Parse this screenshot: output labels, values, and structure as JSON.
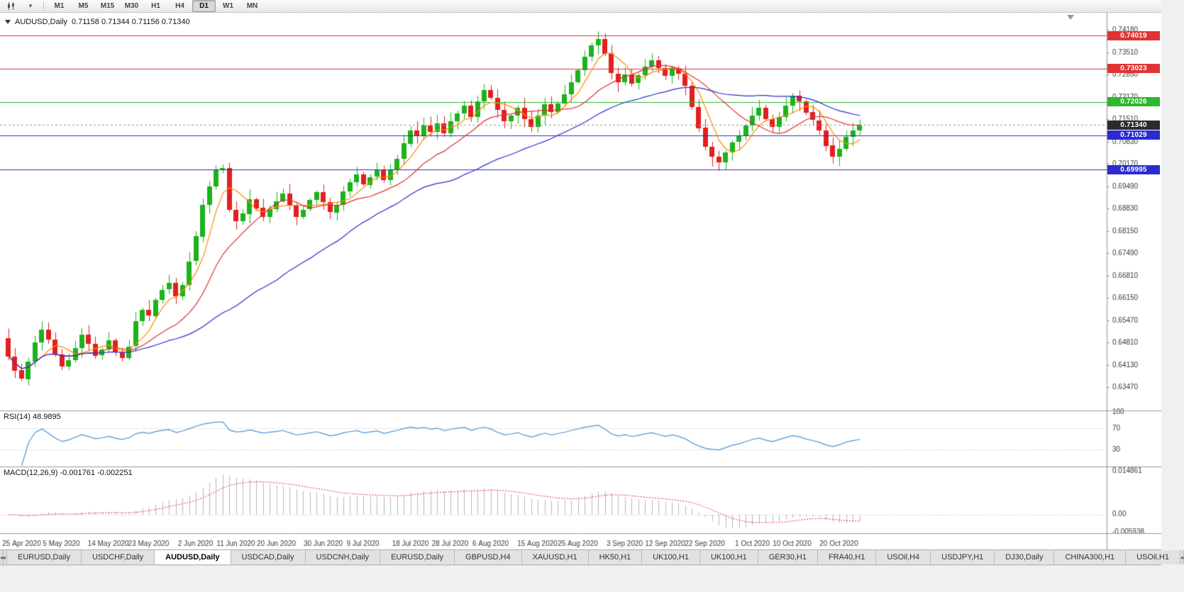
{
  "toolbar": {
    "timeframes": [
      "M1",
      "M5",
      "M15",
      "M30",
      "H1",
      "H4",
      "D1",
      "W1",
      "MN"
    ],
    "active_timeframe": "D1"
  },
  "chart_header": {
    "symbol_title": "AUDUSD,Daily",
    "ohlc_text": "0.71158 0.71344 0.71156 0.71340"
  },
  "indicators": {
    "rsi_label": "RSI(14) 48.9895",
    "macd_label": "MACD(12,26,9) -0.001761 -0.002251"
  },
  "chart_data": {
    "type": "candlestick",
    "title": "AUDUSD,Daily",
    "up_color": "#1cb21c",
    "down_color": "#e21f1f",
    "ylim": [
      0.628,
      0.747
    ],
    "price_axis_ticks": [
      "0.74180",
      "0.73510",
      "0.72850",
      "0.72170",
      "0.71510",
      "0.70830",
      "0.70170",
      "0.69490",
      "0.68830",
      "0.68150",
      "0.67490",
      "0.66810",
      "0.66150",
      "0.65470",
      "0.64810",
      "0.64130",
      "0.63470"
    ],
    "x_labels": [
      "25 Apr 2020",
      "5 May 2020",
      "14 May 2020",
      "23 May 2020",
      "2 Jun 2020",
      "11 Jun 2020",
      "20 Jun 2020",
      "30 Jun 2020",
      "9 Jul 2020",
      "18 Jul 2020",
      "28 Jul 2020",
      "6 Aug 2020",
      "15 Aug 2020",
      "25 Aug 2020",
      "3 Sep 2020",
      "12 Sep 2020",
      "22 Sep 2020",
      "1 Oct 2020",
      "10 Oct 2020",
      "20 Oct 2020"
    ],
    "x_label_candle_indices": [
      0,
      6,
      13,
      19,
      26,
      32,
      38,
      45,
      51,
      58,
      64,
      70,
      77,
      83,
      90,
      96,
      102,
      109,
      115,
      122
    ],
    "first_open": 0.6495,
    "closes": [
      0.644,
      0.6398,
      0.6372,
      0.6425,
      0.6482,
      0.652,
      0.649,
      0.6445,
      0.6408,
      0.6428,
      0.6465,
      0.6505,
      0.6478,
      0.6442,
      0.646,
      0.6488,
      0.6452,
      0.6435,
      0.647,
      0.6545,
      0.658,
      0.6562,
      0.661,
      0.664,
      0.666,
      0.662,
      0.6655,
      0.6725,
      0.68,
      0.6895,
      0.695,
      0.7,
      0.7005,
      0.688,
      0.6845,
      0.6868,
      0.6912,
      0.6885,
      0.6858,
      0.6882,
      0.6905,
      0.6928,
      0.6892,
      0.6858,
      0.688,
      0.6908,
      0.6932,
      0.6902,
      0.6872,
      0.6895,
      0.6935,
      0.6962,
      0.6985,
      0.6955,
      0.6978,
      0.7,
      0.6968,
      0.6998,
      0.7032,
      0.7078,
      0.7118,
      0.7102,
      0.7132,
      0.7112,
      0.7138,
      0.7108,
      0.7145,
      0.7168,
      0.7192,
      0.7158,
      0.7205,
      0.7238,
      0.7215,
      0.7178,
      0.7145,
      0.7162,
      0.7185,
      0.7152,
      0.7128,
      0.7162,
      0.7195,
      0.7172,
      0.7198,
      0.7225,
      0.7262,
      0.7298,
      0.7338,
      0.7372,
      0.7392,
      0.7348,
      0.7288,
      0.7262,
      0.7285,
      0.7258,
      0.7282,
      0.7308,
      0.7328,
      0.7305,
      0.7282,
      0.7305,
      0.7288,
      0.7252,
      0.7188,
      0.7125,
      0.7068,
      0.7038,
      0.7022,
      0.7052,
      0.7082,
      0.7102,
      0.7132,
      0.7162,
      0.7185,
      0.7152,
      0.7128,
      0.7158,
      0.7192,
      0.7222,
      0.7205,
      0.7172,
      0.7148,
      0.7118,
      0.7072,
      0.7038,
      0.7062,
      0.7098,
      0.7118,
      0.7134
    ],
    "wick_overrides": {
      "2": {
        "low": 0.6366
      },
      "88": {
        "high": 0.7414
      },
      "106": {
        "low": 0.6996
      }
    },
    "moving_averages": [
      {
        "period": 5,
        "color": "#ff8a00"
      },
      {
        "period": 13,
        "color": "#e03030"
      },
      {
        "period": 34,
        "color": "#2b2bd0"
      }
    ],
    "horizontal_lines": [
      {
        "price": 0.74019,
        "label": "0.74019",
        "color": "#e03434"
      },
      {
        "price": 0.73023,
        "label": "0.73023",
        "color": "#e03434"
      },
      {
        "price": 0.72026,
        "label": "0.72026",
        "color": "#2db82d"
      },
      {
        "price": 0.71029,
        "label": "0.71029",
        "color": "#2b2bd0"
      },
      {
        "price": 0.69995,
        "label": "0.69995",
        "color": "#2b2bd0"
      }
    ],
    "current_price": {
      "value": 0.7134,
      "label": "0.71340",
      "color": "#2b2b2b"
    },
    "rsi_panel": {
      "period": 14,
      "color": "#4a96d8",
      "current": 48.9895,
      "levels": [
        70,
        30
      ],
      "ylim": [
        0,
        100
      ],
      "axis_ticks": [
        {
          "v": 100,
          "label": "100"
        },
        {
          "v": 70,
          "label": "70"
        },
        {
          "v": 30,
          "label": "30"
        }
      ]
    },
    "macd_panel": {
      "fast": 12,
      "slow": 26,
      "signal": 9,
      "hist_color": "#b8b8b8",
      "signal_color": "#e03030",
      "ylim": [
        -0.005938,
        0.014861
      ],
      "values_text": "-0.001761 -0.002251",
      "axis_ticks": [
        {
          "v": 0.014861,
          "label": "0.014861"
        },
        {
          "v": 0.0,
          "label": "0.00"
        },
        {
          "v": -0.005938,
          "label": "-0.005938"
        }
      ]
    }
  },
  "bottom_tabs": {
    "active_index": 2,
    "items": [
      "EURUSD,Daily",
      "USDCHF,Daily",
      "AUDUSD,Daily",
      "USDCAD,Daily",
      "USDCNH,Daily",
      "EURUSD,Daily",
      "GBPUSD,H4",
      "XAUUSD,H1",
      "HK50,H1",
      "UK100,H1",
      "UK100,H1",
      "GER30,H1",
      "FRA40,H1",
      "USOil,H4",
      "USDJPY,H1",
      "DJ30,Daily",
      "CHINA300,H1",
      "USOil,H1"
    ]
  }
}
